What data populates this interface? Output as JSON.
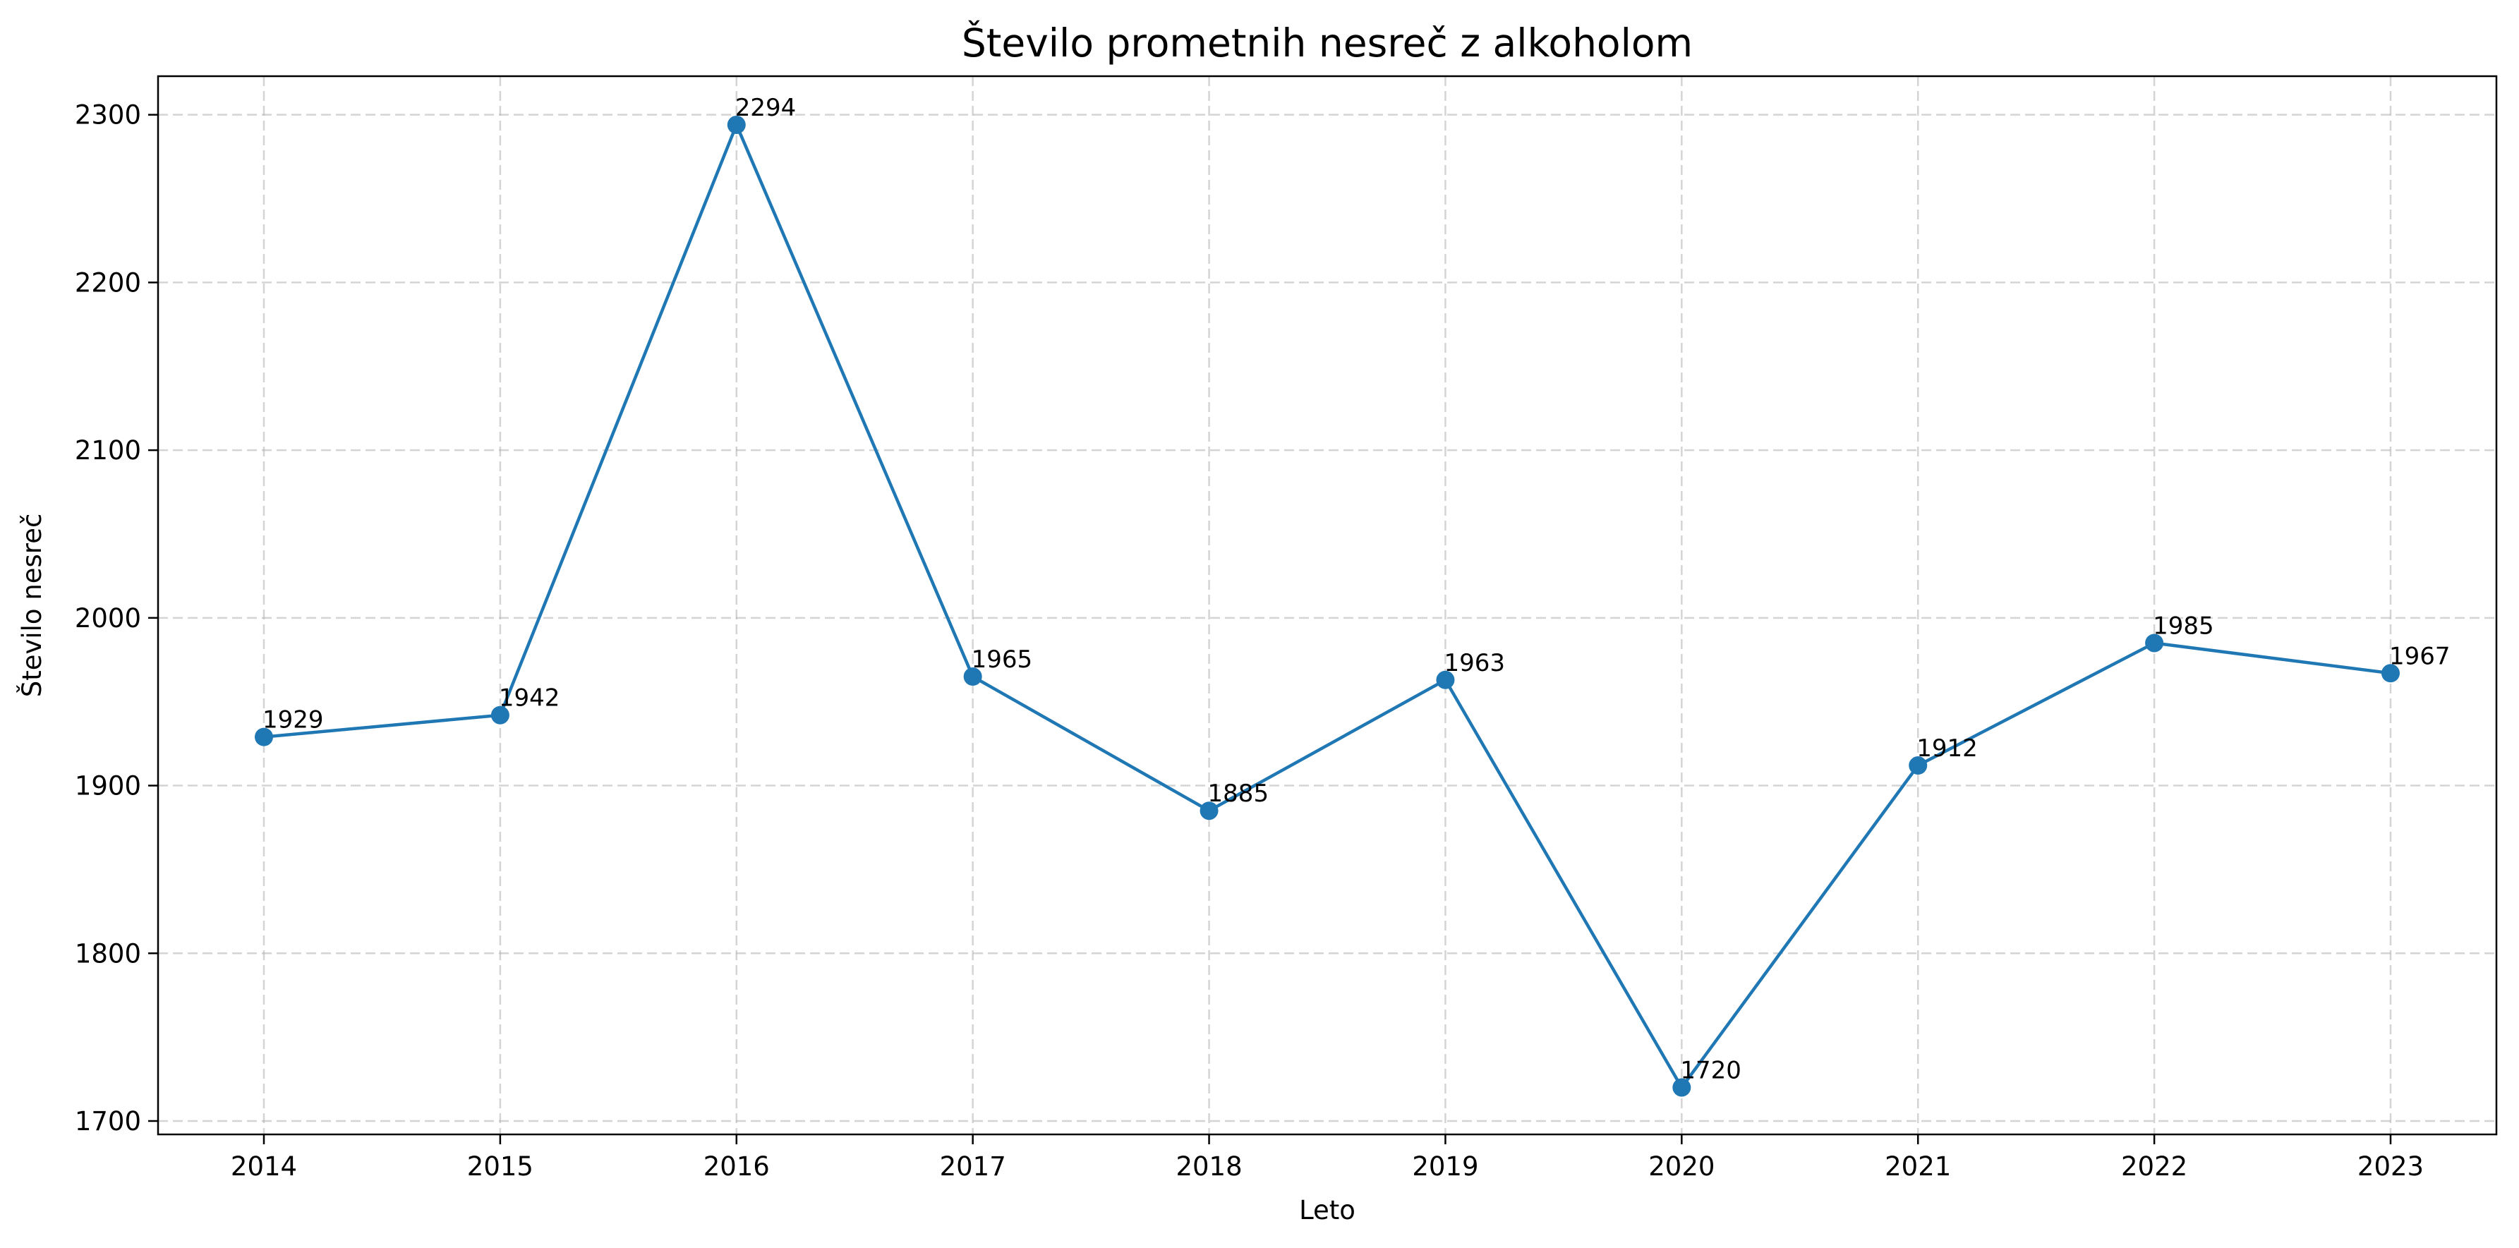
{
  "chart_data": {
    "type": "line",
    "title": "Število prometnih nesreč z alkoholom",
    "xlabel": "Leto",
    "ylabel": "Število nesreč",
    "x": [
      "2014",
      "2015",
      "2016",
      "2017",
      "2018",
      "2019",
      "2020",
      "2021",
      "2022",
      "2023"
    ],
    "series": [
      {
        "values": [
          1929,
          1942,
          2294,
          1965,
          1885,
          1963,
          1720,
          1912,
          1985,
          1967
        ],
        "color": "#1f77b4",
        "marker": "circle"
      }
    ],
    "data_labels": [
      "1929",
      "1942",
      "2294",
      "1965",
      "1885",
      "1963",
      "1720",
      "1912",
      "1985",
      "1967"
    ],
    "yticks": [
      1700,
      1800,
      1900,
      2000,
      2100,
      2200,
      2300
    ],
    "ylim": [
      1692,
      2323
    ],
    "grid": true,
    "legend": "none"
  }
}
